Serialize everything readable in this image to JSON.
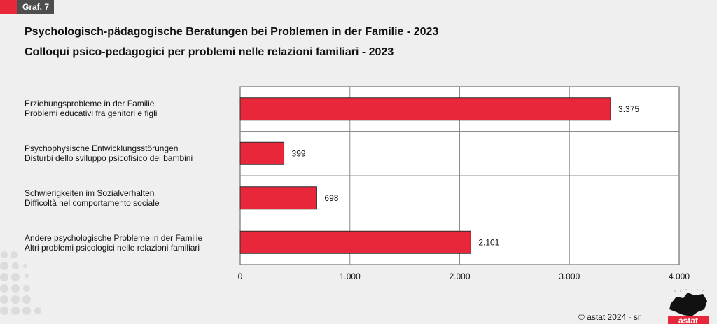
{
  "badge": {
    "label": "Graf. 7"
  },
  "titles": {
    "de": "Psychologisch-pädagogische Beratungen bei Problemen in der Familie - 2023",
    "it": "Colloqui psico-pedagogici per problemi nelle relazioni familiari - 2023"
  },
  "footer": {
    "copyright": "© astat 2024 - sr",
    "logo_text": "astat"
  },
  "colors": {
    "bar": "#e8283a",
    "bar_edge": "#2b2b2b",
    "grid": "#8c8c8c"
  },
  "chart_data": {
    "type": "bar",
    "orientation": "horizontal",
    "categories": [
      {
        "de": "Erziehungsprobleme in der Familie",
        "it": "Problemi educativi fra genitori e figli"
      },
      {
        "de": "Psychophysische Entwicklungsstörungen",
        "it": "Disturbi dello sviluppo psicofisico dei bambini"
      },
      {
        "de": "Schwierigkeiten im Sozialverhalten",
        "it": "Difficoltà nel comportamento sociale"
      },
      {
        "de": "Andere psychologische Probleme in der Familie",
        "it": "Altri problemi psicologici nelle relazioni familiari"
      }
    ],
    "values": [
      3375,
      399,
      698,
      2101
    ],
    "value_labels": [
      "3.375",
      "399",
      "698",
      "2.101"
    ],
    "xlim": [
      0,
      4000
    ],
    "xticks": [
      0,
      1000,
      2000,
      3000,
      4000
    ],
    "xtick_labels": [
      "0",
      "1.000",
      "2.000",
      "3.000",
      "4.000"
    ],
    "grid": true,
    "title": "Psychologisch-pädagogische Beratungen bei Problemen in der Familie - 2023",
    "xlabel": "",
    "ylabel": ""
  }
}
